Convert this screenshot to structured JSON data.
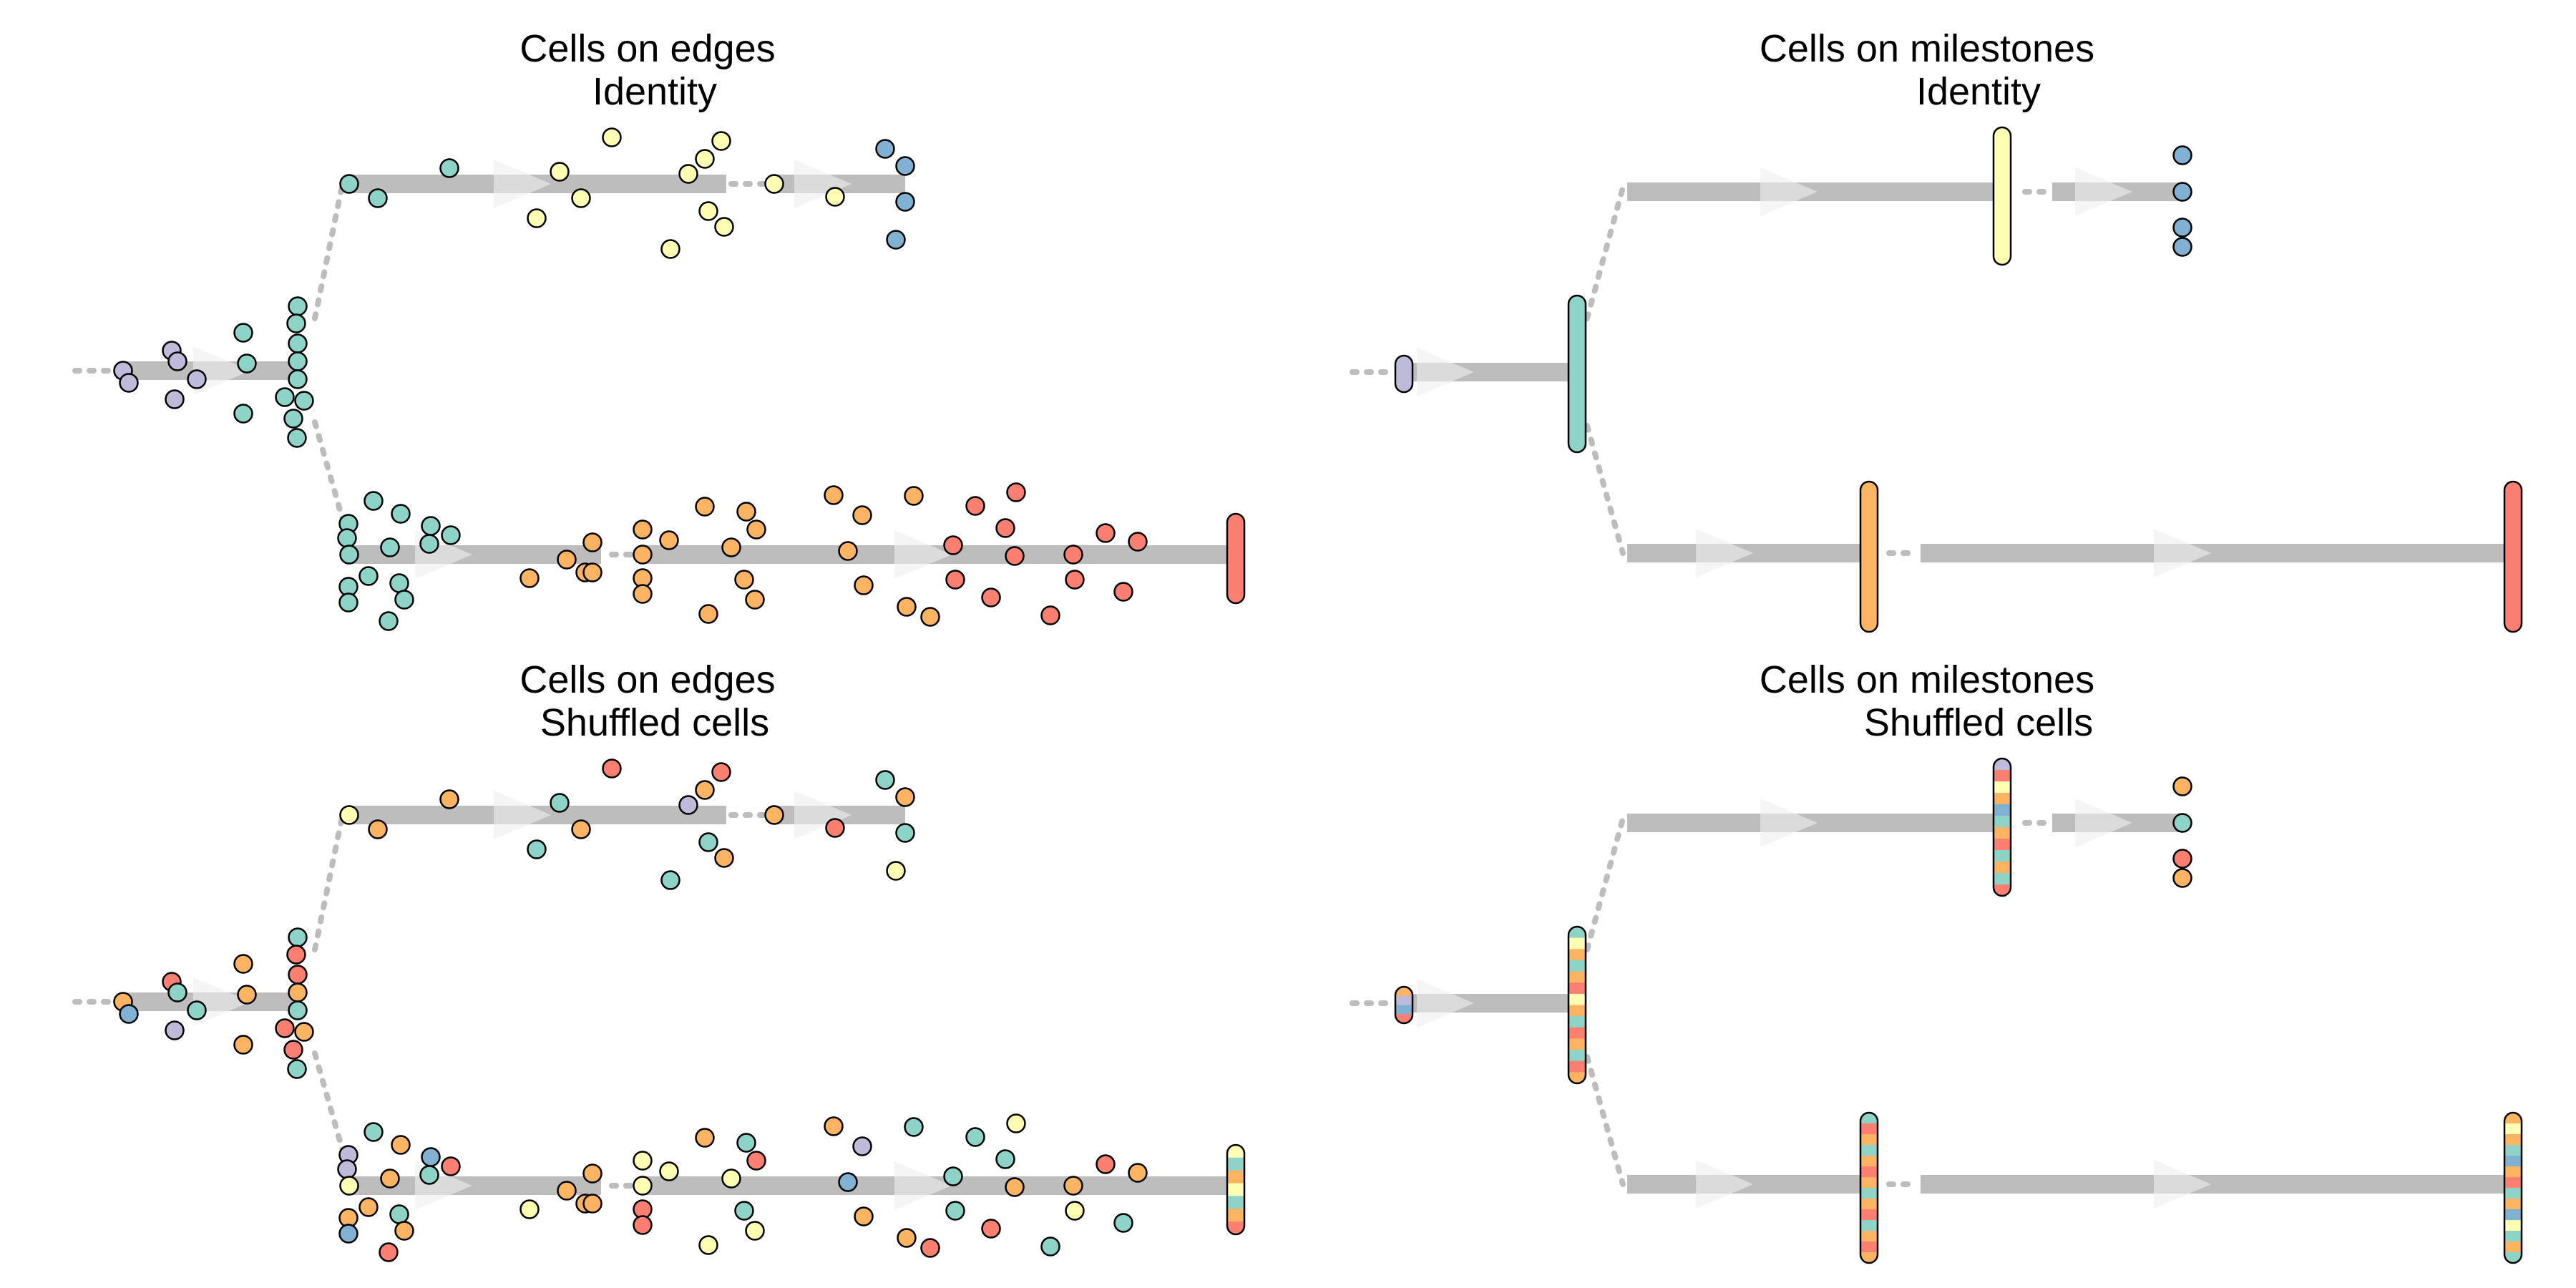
{
  "panels": [
    {
      "id": "edges_identity",
      "title1": "Cells on edges",
      "title2": "Identity"
    },
    {
      "id": "milestones_identity",
      "title1": "Cells on milestones",
      "title2": "Identity"
    },
    {
      "id": "edges_shuffled",
      "title1": "Cells on edges",
      "title2": "Shuffled cells"
    },
    {
      "id": "milestones_shuffled",
      "title1": "Cells on milestones",
      "title2": "Shuffled cells"
    }
  ],
  "colors": {
    "purple": "#bebada",
    "green": "#8dd3c7",
    "yellow": "#ffffb3",
    "blue": "#80b1d3",
    "orange": "#fdb462",
    "red": "#fb8072",
    "edge": "#bdbdbd",
    "dotted": "#bdbdbd",
    "stroke": "#000000"
  }
}
